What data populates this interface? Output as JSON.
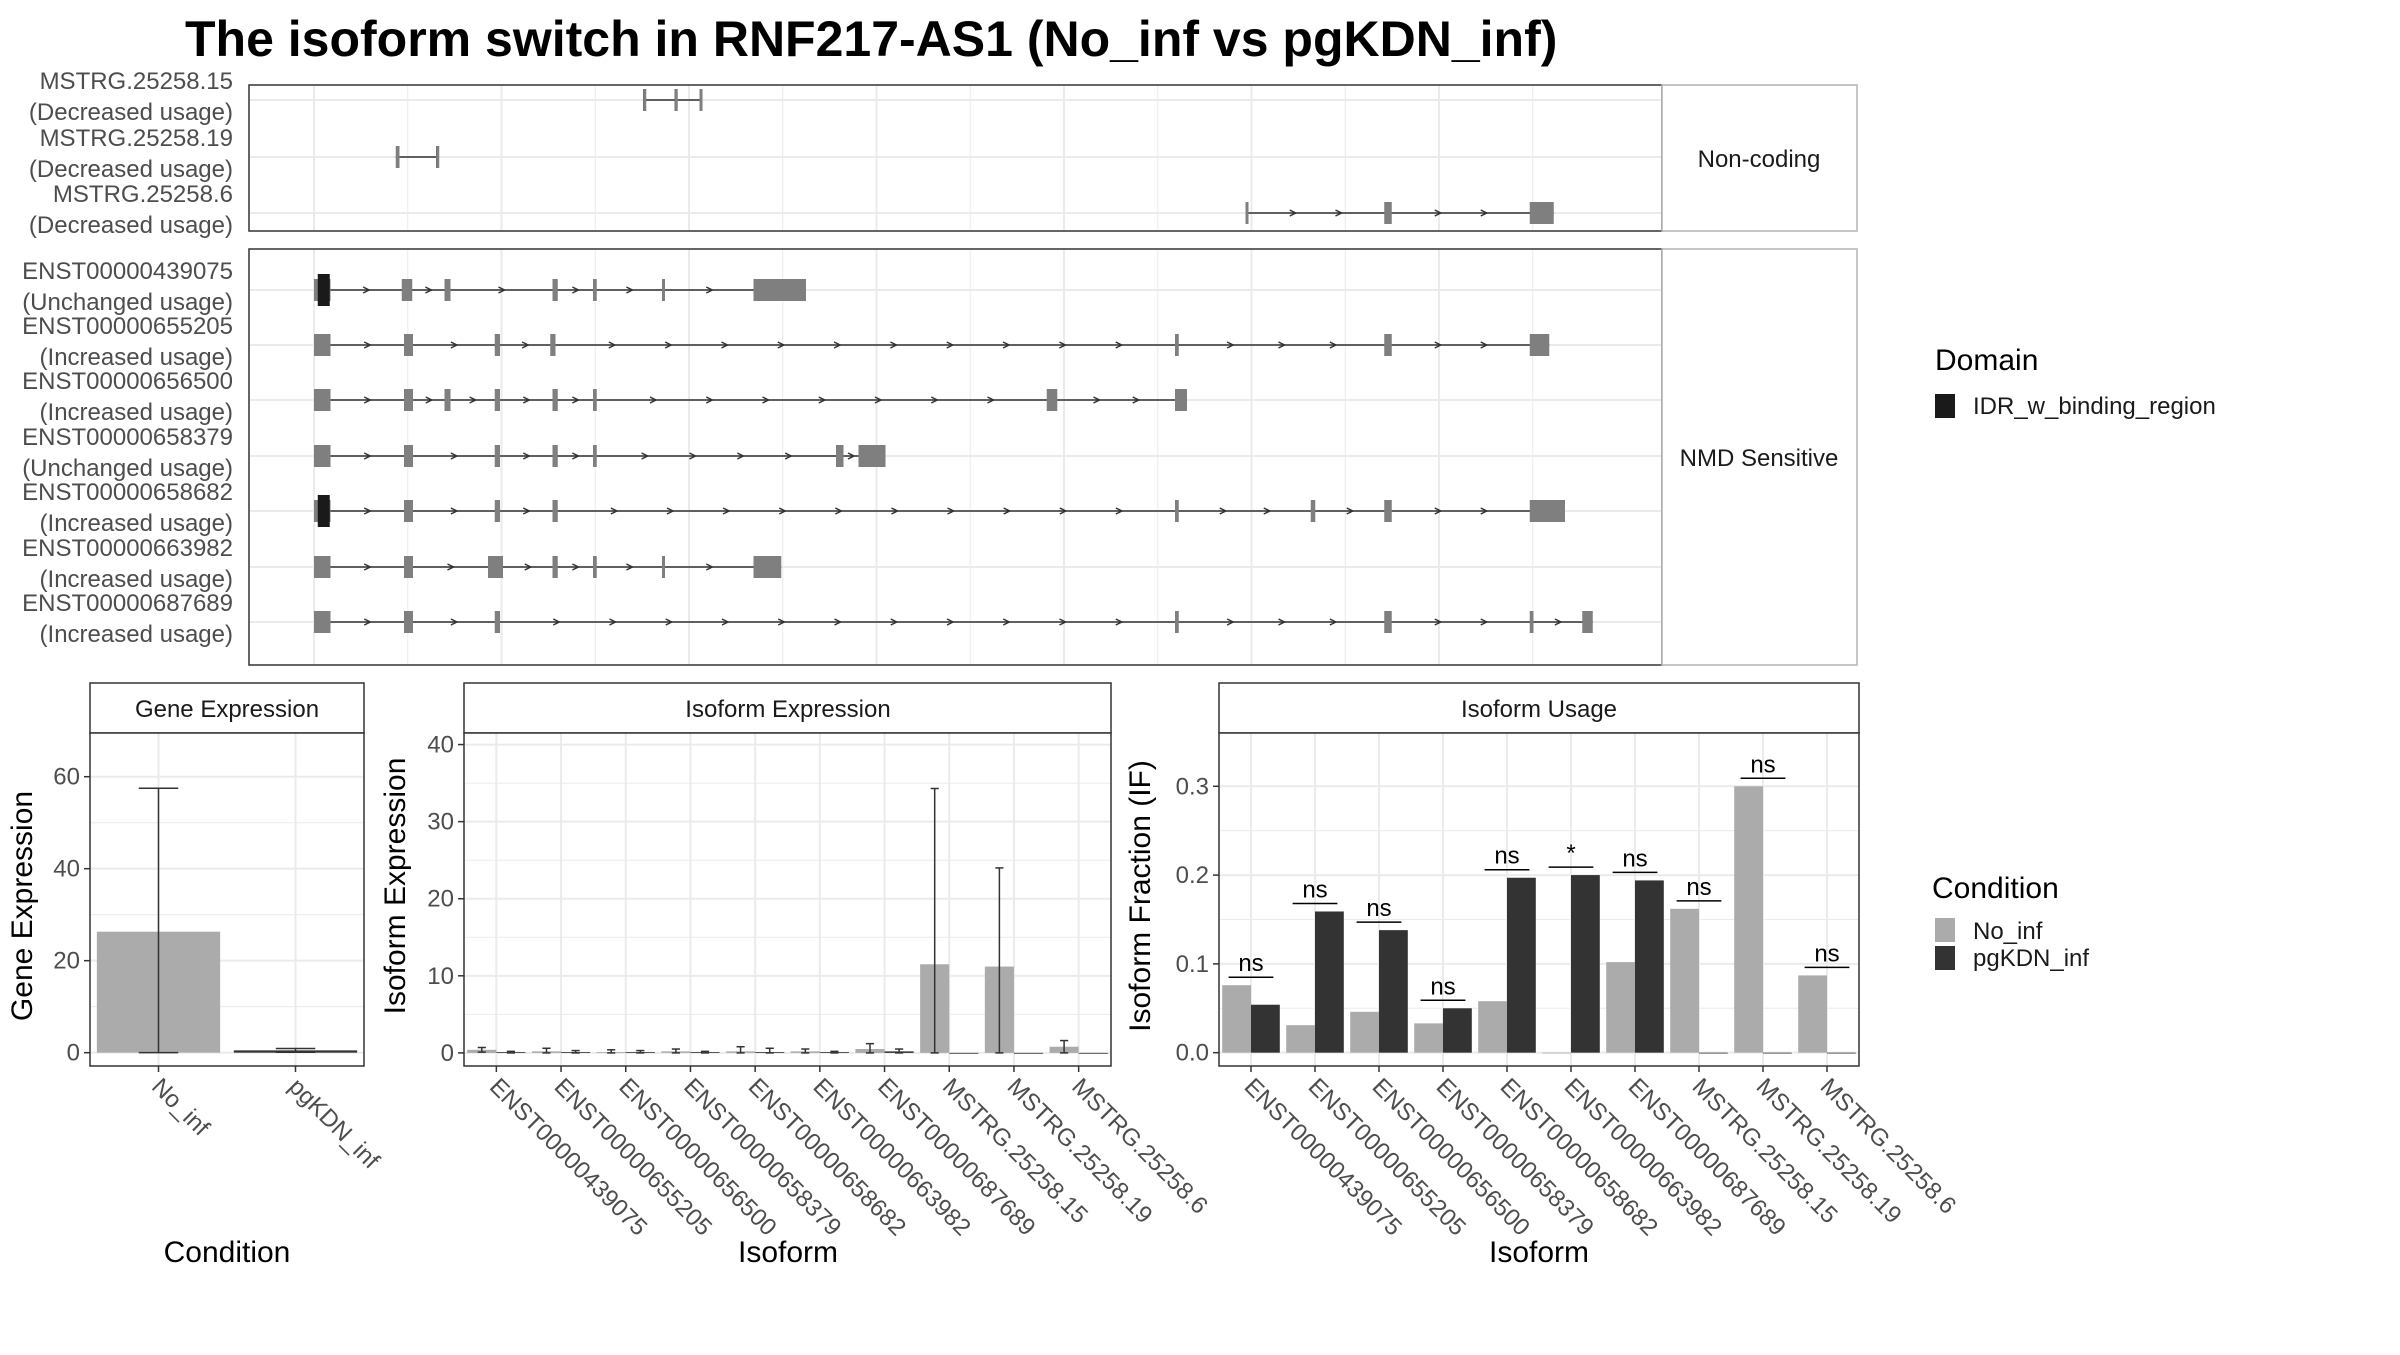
{
  "title": "The isoform switch in RNF217-AS1 (No_inf vs pgKDN_inf)",
  "colors": {
    "no_inf": "#ABABAB",
    "pgkdn_inf": "#333333",
    "exon": "#7F7F7F",
    "domain": "#1A1A1A",
    "grid": "#EBEBEB",
    "panel_border": "#333333",
    "strip_border": "#B3B3B3"
  },
  "structure": {
    "facets": [
      {
        "label": "Non-coding",
        "rows": [
          {
            "id": "MSTRG.25258.15",
            "usage": "(Decreased usage)",
            "domain": false,
            "exons": [
              [
                4.39,
                4.41
              ],
              [
                4.81,
                4.83
              ],
              [
                5.14,
                5.17
              ]
            ],
            "arrows": false
          },
          {
            "id": "MSTRG.25258.19",
            "usage": "(Decreased usage)",
            "domain": false,
            "exons": [
              [
                1.09,
                1.14
              ],
              [
                1.63,
                1.65
              ]
            ],
            "arrows": false
          },
          {
            "id": "MSTRG.25258.6",
            "usage": "(Decreased usage)",
            "domain": false,
            "exons": [
              [
                12.42,
                12.44
              ],
              [
                14.27,
                14.37
              ],
              [
                16.21,
                16.53
              ]
            ],
            "arrows": true
          }
        ]
      },
      {
        "label": "NMD Sensitive",
        "rows": [
          {
            "id": "ENST00000439075",
            "usage": "(Unchanged usage)",
            "domain": true,
            "exons": [
              [
                0,
                0.22
              ],
              [
                1.17,
                1.31
              ],
              [
                1.74,
                1.82
              ],
              [
                3.18,
                3.25
              ],
              [
                3.72,
                3.77
              ],
              [
                4.64,
                4.68
              ],
              [
                5.86,
                6.56
              ]
            ],
            "arrows": true
          },
          {
            "id": "ENST00000655205",
            "usage": "(Increased usage)",
            "domain": false,
            "exons": [
              [
                0,
                0.22
              ],
              [
                1.2,
                1.32
              ],
              [
                2.41,
                2.48
              ],
              [
                3.15,
                3.22
              ],
              [
                11.48,
                11.53
              ],
              [
                14.27,
                14.37
              ],
              [
                16.21,
                16.47
              ]
            ],
            "arrows": true
          },
          {
            "id": "ENST00000656500",
            "usage": "(Increased usage)",
            "domain": false,
            "exons": [
              [
                0,
                0.22
              ],
              [
                1.2,
                1.32
              ],
              [
                1.74,
                1.82
              ],
              [
                2.41,
                2.48
              ],
              [
                3.18,
                3.25
              ],
              [
                3.72,
                3.77
              ],
              [
                9.77,
                9.91
              ],
              [
                11.48,
                11.64
              ]
            ],
            "arrows": true
          },
          {
            "id": "ENST00000658379",
            "usage": "(Unchanged usage)",
            "domain": false,
            "exons": [
              [
                0,
                0.22
              ],
              [
                1.2,
                1.32
              ],
              [
                2.41,
                2.48
              ],
              [
                3.18,
                3.25
              ],
              [
                3.72,
                3.77
              ],
              [
                6.96,
                7.06
              ],
              [
                7.26,
                7.62
              ]
            ],
            "arrows": true
          },
          {
            "id": "ENST00000658682",
            "usage": "(Increased usage)",
            "domain": true,
            "exons": [
              [
                0,
                0.22
              ],
              [
                1.2,
                1.32
              ],
              [
                2.41,
                2.48
              ],
              [
                3.18,
                3.25
              ],
              [
                11.48,
                11.53
              ],
              [
                13.29,
                13.35
              ],
              [
                14.27,
                14.37
              ],
              [
                16.21,
                16.68
              ]
            ],
            "arrows": true
          },
          {
            "id": "ENST00000663982",
            "usage": "(Increased usage)",
            "domain": false,
            "exons": [
              [
                0,
                0.22
              ],
              [
                1.2,
                1.32
              ],
              [
                2.32,
                2.52
              ],
              [
                3.18,
                3.25
              ],
              [
                3.72,
                3.77
              ],
              [
                4.64,
                4.68
              ],
              [
                5.86,
                6.23
              ]
            ],
            "arrows": true
          },
          {
            "id": "ENST00000687689",
            "usage": "(Increased usage)",
            "domain": false,
            "exons": [
              [
                0,
                0.22
              ],
              [
                1.2,
                1.32
              ],
              [
                2.41,
                2.48
              ],
              [
                11.48,
                11.53
              ],
              [
                14.27,
                14.37
              ],
              [
                16.21,
                16.26
              ],
              [
                16.91,
                17.05
              ]
            ],
            "arrows": true
          }
        ]
      }
    ],
    "legend": {
      "title": "Domain",
      "item": "IDR_w_binding_region"
    }
  },
  "chart_data": [
    {
      "type": "bar",
      "title": "Gene Expression",
      "xlabel": "Condition",
      "ylabel": "Gene Expression",
      "categories": [
        "No_inf",
        "pgKDN_inf"
      ],
      "values": [
        26.3,
        0.5
      ],
      "error_upper": [
        57.5,
        0.9
      ],
      "error_lower": [
        0,
        0.1
      ],
      "ylim": [
        -2.9,
        69.5
      ],
      "yticks": [
        0,
        20,
        40,
        60
      ]
    },
    {
      "type": "bar",
      "title": "Isoform Expression",
      "xlabel": "Isoform",
      "ylabel": "Isoform Expression",
      "categories": [
        "ENST00000439075",
        "ENST00000655205",
        "ENST00000656500",
        "ENST00000658379",
        "ENST00000658682",
        "ENST00000663982",
        "ENST00000687689",
        "MSTRG.25258.15",
        "MSTRG.25258.19",
        "MSTRG.25258.6"
      ],
      "series": [
        {
          "name": "No_inf",
          "values": [
            0.4,
            0.2,
            0.1,
            0.2,
            0.2,
            0.2,
            0.5,
            11.5,
            11.2,
            0.8
          ],
          "error_upper": [
            0.7,
            0.6,
            0.4,
            0.5,
            0.8,
            0.5,
            1.2,
            34.3,
            24.0,
            1.6
          ]
        },
        {
          "name": "pgKDN_inf",
          "values": [
            0.1,
            0.1,
            0.1,
            0.1,
            0.1,
            0.1,
            0.2,
            0,
            0,
            0
          ],
          "error_upper": [
            0.2,
            0.3,
            0.3,
            0.2,
            0.6,
            0.2,
            0.5,
            0,
            0,
            0
          ]
        }
      ],
      "ylim": [
        -1.7,
        41.5
      ],
      "yticks": [
        0,
        10,
        20,
        30,
        40
      ]
    },
    {
      "type": "bar",
      "title": "Isoform Usage",
      "xlabel": "Isoform",
      "ylabel": "Isoform Fraction (IF)",
      "categories": [
        "ENST00000439075",
        "ENST00000655205",
        "ENST00000656500",
        "ENST00000658379",
        "ENST00000658682",
        "ENST00000663982",
        "ENST00000687689",
        "MSTRG.25258.15",
        "MSTRG.25258.19",
        "MSTRG.25258.6"
      ],
      "series": [
        {
          "name": "No_inf",
          "values": [
            0.076,
            0.031,
            0.046,
            0.033,
            0.058,
            0.0,
            0.102,
            0.162,
            0.3,
            0.087
          ]
        },
        {
          "name": "pgKDN_inf",
          "values": [
            0.054,
            0.159,
            0.138,
            0.05,
            0.197,
            0.2,
            0.194,
            0.0,
            0.0,
            0.0
          ]
        }
      ],
      "significance": [
        "ns",
        "ns",
        "ns",
        "ns",
        "ns",
        "*",
        "ns",
        "ns",
        "ns",
        "ns"
      ],
      "ylim": [
        -0.015,
        0.36
      ],
      "yticks": [
        0.0,
        0.1,
        0.2,
        0.3
      ],
      "ytick_labels": [
        "0.0",
        "0.1",
        "0.2",
        "0.3"
      ]
    }
  ],
  "condition_legend": {
    "title": "Condition",
    "items": [
      "No_inf",
      "pgKDN_inf"
    ]
  }
}
